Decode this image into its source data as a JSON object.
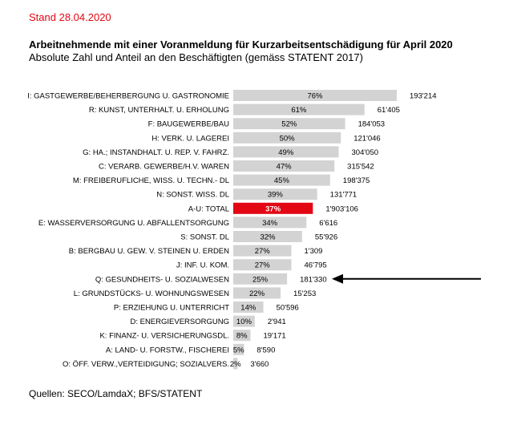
{
  "header": {
    "stand": "Stand 28.04.2020",
    "title": "Arbeitnehmende mit einer Voranmeldung für Kurzarbeitsentschädigung für April 2020",
    "subtitle": "Absolute Zahl und Anteil an den Beschäftigten (gemäss STATENT 2017)"
  },
  "footer": {
    "source": "Quellen: SECO/LamdaX; BFS/STATENT"
  },
  "colors": {
    "bar": "#d3d3d3",
    "highlight": "#e30613",
    "text": "#000000",
    "highlight_text": "#ffffff"
  },
  "chart_data": {
    "type": "bar",
    "orientation": "horizontal",
    "highlight_category": "A-U: TOTAL",
    "annotation": "arrow pointing to Q: GESUNDHEITS- U. SOZIALWESEN",
    "categories": [
      "I: GASTGEWERBE/BEHERBERGUNG U. GASTRONOMIE",
      "R: KUNST, UNTERHALT. U. ERHOLUNG",
      "F: BAUGEWERBE/BAU",
      "H: VERK. U. LAGEREI",
      "G: HA.; INSTANDHALT. U. REP. V. FAHRZ.",
      "C: VERARB. GEWERBE/H.V. WAREN",
      "M: FREIBERUFLICHE, WISS. U. TECHN.- DL",
      "N: SONST. WISS. DL",
      "A-U: TOTAL",
      "E: WASSERVERSORGUNG U. ABFALLENTSORGUNG",
      "S: SONST. DL",
      "B: BERGBAU U. GEW. V. STEINEN U. ERDEN",
      "J: INF. U. KOM.",
      "Q: GESUNDHEITS- U. SOZIALWESEN",
      "L: GRUNDSTÜCKS- U. WOHNUNGSWESEN",
      "P: ERZIEHUNG U. UNTERRICHT",
      "D: ENERGIEVERSORGUNG",
      "K: FINANZ- U. VERSICHERUNGSDL.",
      "A: LAND- U. FORSTW., FISCHEREI",
      "O: ÖFF. VERW.,VERTEIDIGUNG; SOZIALVERS."
    ],
    "shares_percent": [
      76,
      61,
      52,
      50,
      49,
      47,
      45,
      39,
      37,
      34,
      32,
      27,
      27,
      25,
      22,
      14,
      10,
      8,
      5,
      2
    ],
    "share_labels": [
      "76%",
      "61%",
      "52%",
      "50%",
      "49%",
      "47%",
      "45%",
      "39%",
      "37%",
      "34%",
      "32%",
      "27%",
      "27%",
      "25%",
      "22%",
      "14%",
      "10%",
      "8%",
      "5%",
      "2%"
    ],
    "absolute_labels": [
      "193'214",
      "61'405",
      "184'053",
      "121'046",
      "304'050",
      "315'542",
      "198'375",
      "131'771",
      "1'903'106",
      "6'616",
      "55'926",
      "1'309",
      "46'795",
      "181'330",
      "15'253",
      "50'596",
      "2'941",
      "19'171",
      "8'590",
      "3'660"
    ],
    "xlim": [
      0,
      100
    ]
  }
}
